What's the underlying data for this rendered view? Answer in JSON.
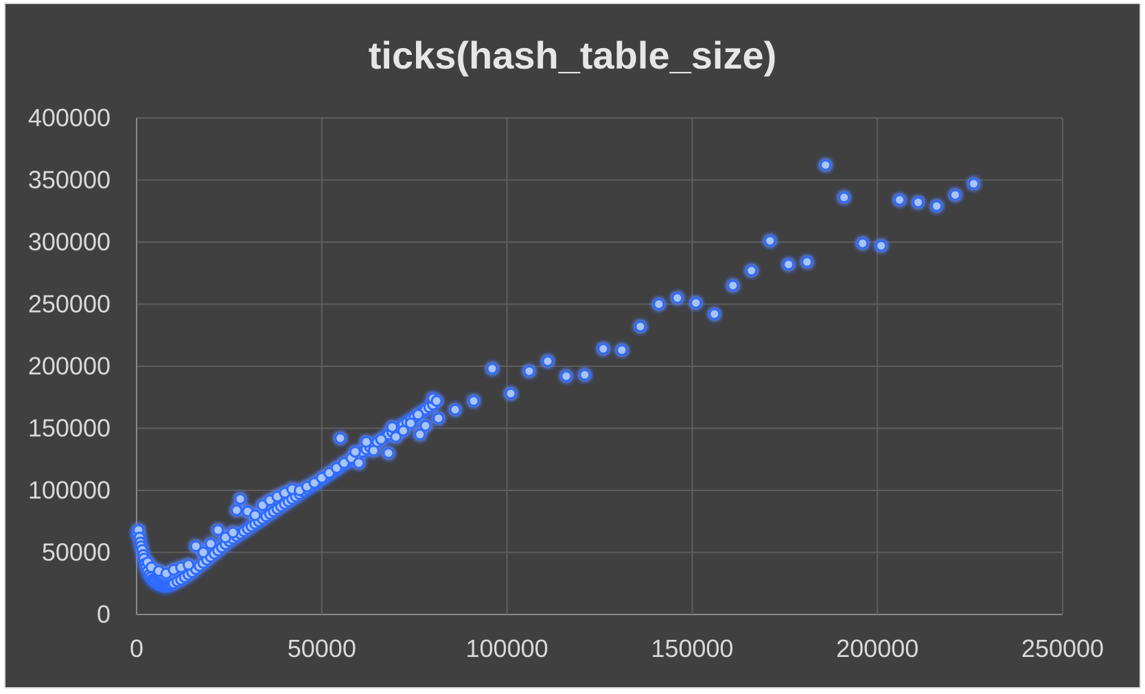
{
  "chart_data": {
    "type": "scatter",
    "title": "ticks(hash_table_size)",
    "xlabel": "",
    "ylabel": "",
    "xlim": [
      0,
      250000
    ],
    "ylim": [
      0,
      400000
    ],
    "x_ticks": [
      0,
      50000,
      100000,
      150000,
      200000,
      250000
    ],
    "y_ticks": [
      0,
      50000,
      100000,
      150000,
      200000,
      250000,
      300000,
      350000,
      400000
    ],
    "x_tick_labels": [
      "0",
      "50000",
      "100000",
      "150000",
      "200000",
      "250000"
    ],
    "y_tick_labels": [
      "0",
      "50000",
      "100000",
      "150000",
      "200000",
      "250000",
      "300000",
      "350000",
      "400000"
    ],
    "grid": true,
    "legend": "none",
    "colors": {
      "background": "#404040",
      "marker": "#a9c4f5",
      "glow": "#2f6bff",
      "text": "#d9d9d9"
    },
    "series": [
      {
        "values": [
          [
            200,
            65000
          ],
          [
            500,
            68000
          ],
          [
            800,
            62000
          ],
          [
            1000,
            58000
          ],
          [
            1200,
            55000
          ],
          [
            1500,
            52000
          ],
          [
            1800,
            48000
          ],
          [
            2000,
            45000
          ],
          [
            2300,
            41000
          ],
          [
            2600,
            38000
          ],
          [
            3000,
            35000
          ],
          [
            3400,
            32000
          ],
          [
            3800,
            30000
          ],
          [
            4200,
            28000
          ],
          [
            4600,
            27000
          ],
          [
            5000,
            26000
          ],
          [
            5500,
            25000
          ],
          [
            6000,
            24000
          ],
          [
            6500,
            23500
          ],
          [
            7000,
            23000
          ],
          [
            7500,
            22500
          ],
          [
            8000,
            22500
          ],
          [
            8500,
            23000
          ],
          [
            9000,
            23500
          ],
          [
            9500,
            24000
          ],
          [
            10000,
            25000
          ],
          [
            11000,
            26500
          ],
          [
            12000,
            28000
          ],
          [
            13000,
            30000
          ],
          [
            14000,
            32000
          ],
          [
            15000,
            34000
          ],
          [
            16000,
            36500
          ],
          [
            17000,
            39000
          ],
          [
            18000,
            41500
          ],
          [
            19000,
            44000
          ],
          [
            20000,
            46500
          ],
          [
            21000,
            49000
          ],
          [
            22000,
            51500
          ],
          [
            23000,
            54000
          ],
          [
            24000,
            56500
          ],
          [
            25000,
            59000
          ],
          [
            26000,
            61000
          ],
          [
            27000,
            63000
          ],
          [
            28000,
            65000
          ],
          [
            29000,
            67000
          ],
          [
            30000,
            69000
          ],
          [
            31000,
            71000
          ],
          [
            32000,
            73000
          ],
          [
            33000,
            75000
          ],
          [
            34000,
            77000
          ],
          [
            35000,
            79000
          ],
          [
            36000,
            81000
          ],
          [
            37000,
            83000
          ],
          [
            38000,
            85000
          ],
          [
            39000,
            87000
          ],
          [
            40000,
            89000
          ],
          [
            41000,
            91000
          ],
          [
            42000,
            93000
          ],
          [
            43000,
            95000
          ],
          [
            44000,
            97000
          ],
          [
            45000,
            99000
          ],
          [
            46000,
            101000
          ],
          [
            47000,
            103000
          ],
          [
            48000,
            105000
          ],
          [
            49000,
            107000
          ],
          [
            50000,
            109000
          ],
          [
            51000,
            111000
          ],
          [
            52000,
            113000
          ],
          [
            53000,
            115000
          ],
          [
            54000,
            117000
          ],
          [
            55000,
            119000
          ],
          [
            56000,
            121000
          ],
          [
            57000,
            123000
          ],
          [
            58000,
            125000
          ],
          [
            59000,
            127000
          ],
          [
            60000,
            129000
          ],
          [
            61000,
            131000
          ],
          [
            62000,
            133000
          ],
          [
            63000,
            135000
          ],
          [
            64000,
            137000
          ],
          [
            65000,
            139000
          ],
          [
            66000,
            141000
          ],
          [
            67000,
            143000
          ],
          [
            68000,
            145000
          ],
          [
            69000,
            147000
          ],
          [
            70000,
            149000
          ],
          [
            71000,
            151000
          ],
          [
            72000,
            153000
          ],
          [
            73000,
            155000
          ],
          [
            74000,
            157000
          ],
          [
            75000,
            159000
          ],
          [
            76000,
            161000
          ],
          [
            77000,
            163000
          ],
          [
            78000,
            165000
          ],
          [
            79000,
            167000
          ],
          [
            80000,
            169000
          ],
          [
            3000,
            42000
          ],
          [
            4000,
            38000
          ],
          [
            6000,
            35000
          ],
          [
            8000,
            33000
          ],
          [
            10000,
            36000
          ],
          [
            12000,
            38000
          ],
          [
            14000,
            40000
          ],
          [
            16000,
            55000
          ],
          [
            18000,
            50000
          ],
          [
            20000,
            57000
          ],
          [
            22000,
            68000
          ],
          [
            24000,
            62000
          ],
          [
            26000,
            66000
          ],
          [
            27000,
            84000
          ],
          [
            28000,
            93000
          ],
          [
            30000,
            83000
          ],
          [
            32000,
            80000
          ],
          [
            34000,
            88000
          ],
          [
            36000,
            92000
          ],
          [
            38000,
            95000
          ],
          [
            40000,
            98000
          ],
          [
            42000,
            101000
          ],
          [
            44000,
            100000
          ],
          [
            46000,
            103000
          ],
          [
            48000,
            106000
          ],
          [
            50000,
            110000
          ],
          [
            52000,
            114000
          ],
          [
            54000,
            118000
          ],
          [
            55000,
            142000
          ],
          [
            56000,
            122000
          ],
          [
            58000,
            126000
          ],
          [
            59000,
            131000
          ],
          [
            60000,
            122000
          ],
          [
            62000,
            139000
          ],
          [
            64000,
            132000
          ],
          [
            66000,
            141000
          ],
          [
            68000,
            130000
          ],
          [
            69000,
            151000
          ],
          [
            70000,
            143000
          ],
          [
            72000,
            148000
          ],
          [
            74000,
            154000
          ],
          [
            76000,
            161000
          ],
          [
            76500,
            145000
          ],
          [
            78000,
            152000
          ],
          [
            80000,
            174000
          ],
          [
            81000,
            172000
          ],
          [
            81500,
            158000
          ],
          [
            86000,
            165000
          ],
          [
            91000,
            172000
          ],
          [
            96000,
            198000
          ],
          [
            101000,
            178000
          ],
          [
            106000,
            196000
          ],
          [
            111000,
            204000
          ],
          [
            116000,
            192000
          ],
          [
            121000,
            193000
          ],
          [
            126000,
            214000
          ],
          [
            131000,
            213000
          ],
          [
            136000,
            232000
          ],
          [
            141000,
            250000
          ],
          [
            146000,
            255000
          ],
          [
            151000,
            251000
          ],
          [
            156000,
            242000
          ],
          [
            161000,
            265000
          ],
          [
            166000,
            277000
          ],
          [
            171000,
            301000
          ],
          [
            176000,
            282000
          ],
          [
            181000,
            284000
          ],
          [
            186000,
            362000
          ],
          [
            191000,
            336000
          ],
          [
            196000,
            299000
          ],
          [
            201000,
            297000
          ],
          [
            206000,
            334000
          ],
          [
            211000,
            332000
          ],
          [
            216000,
            329000
          ],
          [
            221000,
            338000
          ],
          [
            226000,
            347000
          ]
        ]
      }
    ]
  }
}
